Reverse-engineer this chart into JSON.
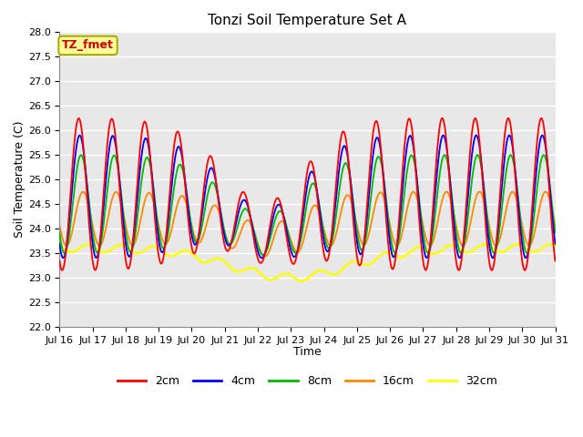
{
  "title": "Tonzi Soil Temperature Set A",
  "xlabel": "Time",
  "ylabel": "Soil Temperature (C)",
  "ylim": [
    22.0,
    28.0
  ],
  "yticks": [
    22.0,
    22.5,
    23.0,
    23.5,
    24.0,
    24.5,
    25.0,
    25.5,
    26.0,
    26.5,
    27.0,
    27.5,
    28.0
  ],
  "colors": {
    "2cm": "#ff0000",
    "4cm": "#0000ff",
    "8cm": "#00bb00",
    "16cm": "#ff8800",
    "32cm": "#ffff00"
  },
  "annotation_label": "TZ_fmet",
  "annotation_color": "#cc0000",
  "annotation_bg": "#ffff99",
  "annotation_border": "#aaaa00",
  "bg_color": "#e8e8e8",
  "grid_color": "#ffffff",
  "x_tick_labels": [
    "Jul 16",
    "Jul 17",
    "Jul 18",
    "Jul 19",
    "Jul 20",
    "Jul 21",
    "Jul 22",
    "Jul 23",
    "Jul 24",
    "Jul 25",
    "Jul 26",
    "Jul 27",
    "Jul 28",
    "Jul 29",
    "Jul 30",
    "Jul 31"
  ]
}
